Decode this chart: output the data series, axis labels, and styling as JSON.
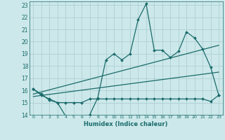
{
  "xlabel": "Humidex (Indice chaleur)",
  "background_color": "#cce8ea",
  "grid_color": "#b0d0d4",
  "line_color": "#1a6b6b",
  "xlim": [
    -0.5,
    23.5
  ],
  "ylim": [
    14,
    23.3
  ],
  "xticks": [
    0,
    1,
    2,
    3,
    4,
    5,
    6,
    7,
    8,
    9,
    10,
    11,
    12,
    13,
    14,
    15,
    16,
    17,
    18,
    19,
    20,
    21,
    22,
    23
  ],
  "yticks": [
    14,
    15,
    16,
    17,
    18,
    19,
    20,
    21,
    22,
    23
  ],
  "line1_x": [
    0,
    1,
    2,
    3,
    4,
    5,
    6,
    7,
    8,
    9,
    10,
    11,
    12,
    13,
    14,
    15,
    16,
    17,
    18,
    19,
    20,
    21,
    22,
    23
  ],
  "line1_y": [
    16.1,
    15.7,
    15.2,
    15.0,
    13.9,
    13.75,
    13.65,
    14.0,
    15.4,
    18.5,
    19.0,
    18.5,
    19.0,
    21.8,
    23.1,
    19.3,
    19.3,
    18.7,
    19.2,
    20.8,
    20.3,
    19.4,
    17.9,
    15.6
  ],
  "line2_x": [
    0,
    1,
    2,
    3,
    4,
    5,
    6,
    7,
    8,
    9,
    10,
    11,
    12,
    13,
    14,
    15,
    16,
    17,
    18,
    19,
    20,
    21,
    22,
    23
  ],
  "line2_y": [
    16.1,
    15.6,
    15.3,
    15.0,
    15.0,
    15.0,
    15.0,
    15.3,
    15.3,
    15.3,
    15.3,
    15.3,
    15.3,
    15.3,
    15.3,
    15.3,
    15.3,
    15.3,
    15.3,
    15.3,
    15.3,
    15.3,
    15.1,
    15.6
  ],
  "trend1_x": [
    0,
    23
  ],
  "trend1_y": [
    15.7,
    19.7
  ],
  "trend2_x": [
    0,
    23
  ],
  "trend2_y": [
    15.5,
    17.5
  ]
}
